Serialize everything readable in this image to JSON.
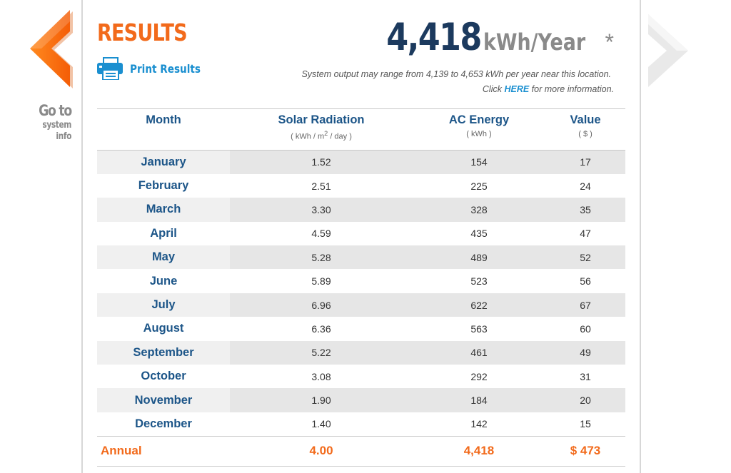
{
  "nav": {
    "goto_line1": "Go to",
    "goto_line2": "system info"
  },
  "header": {
    "title": "RESULTS",
    "print_label": "Print Results",
    "annual_output": "4,418",
    "annual_unit": "kWh/Year",
    "asterisk": "*",
    "range_text": "System output may range from 4,139 to 4,653 kWh per year near this location.",
    "info_prefix": "Click ",
    "info_link": "HERE",
    "info_suffix": " for more information."
  },
  "table": {
    "headers": {
      "month": "Month",
      "solar": "Solar Radiation",
      "solar_unit_a": "( kWh / m",
      "solar_unit_sup": "2",
      "solar_unit_b": " / day )",
      "ac": "AC Energy",
      "ac_unit": "( kWh )",
      "value": "Value",
      "value_unit": "( $ )"
    },
    "rows": [
      {
        "month": "January",
        "solar": "1.52",
        "ac": "154",
        "value": "17"
      },
      {
        "month": "February",
        "solar": "2.51",
        "ac": "225",
        "value": "24"
      },
      {
        "month": "March",
        "solar": "3.30",
        "ac": "328",
        "value": "35"
      },
      {
        "month": "April",
        "solar": "4.59",
        "ac": "435",
        "value": "47"
      },
      {
        "month": "May",
        "solar": "5.28",
        "ac": "489",
        "value": "52"
      },
      {
        "month": "June",
        "solar": "5.89",
        "ac": "523",
        "value": "56"
      },
      {
        "month": "July",
        "solar": "6.96",
        "ac": "622",
        "value": "67"
      },
      {
        "month": "August",
        "solar": "6.36",
        "ac": "563",
        "value": "60"
      },
      {
        "month": "September",
        "solar": "5.22",
        "ac": "461",
        "value": "49"
      },
      {
        "month": "October",
        "solar": "3.08",
        "ac": "292",
        "value": "31"
      },
      {
        "month": "November",
        "solar": "1.90",
        "ac": "184",
        "value": "20"
      },
      {
        "month": "December",
        "solar": "1.40",
        "ac": "142",
        "value": "15"
      }
    ],
    "annual": {
      "label": "Annual",
      "solar": "4.00",
      "ac": "4,418",
      "value": "$ 473"
    }
  },
  "colors": {
    "accent": "#f26a1b",
    "heading_blue": "#1c5588",
    "number_navy": "#1c3a5e",
    "link_blue": "#1a8fd0"
  },
  "icons": {
    "left": "chevron-left-icon",
    "right": "chevron-right-icon",
    "print": "printer-icon"
  }
}
